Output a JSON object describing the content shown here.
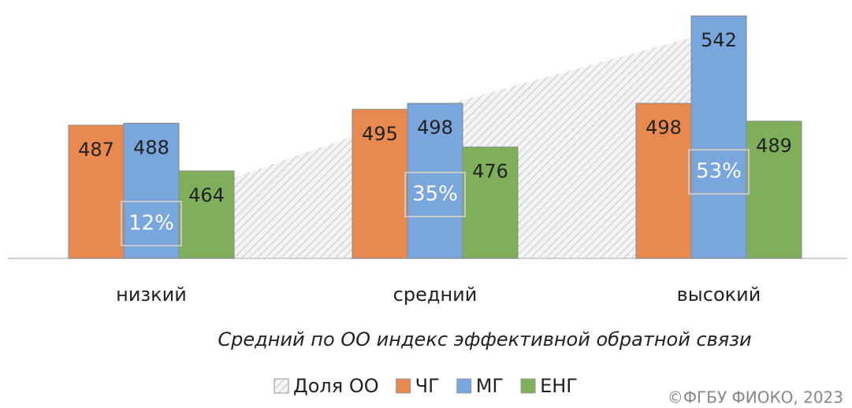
{
  "chart_data": {
    "type": "bar",
    "categories": [
      "низкий",
      "средний",
      "высокий"
    ],
    "x_label": "Средний по ОО индекс эффективной обратной связи",
    "series": [
      {
        "name": "Доля ОО",
        "type": "area",
        "axis": "y2",
        "color": "#bfbfbf",
        "values": [
          12,
          35,
          53
        ],
        "value_labels": [
          "12%",
          "35%",
          "53%"
        ]
      },
      {
        "name": "ЧГ",
        "color": "#e8894f",
        "values": [
          487,
          495,
          498
        ]
      },
      {
        "name": "МГ",
        "color": "#79a6dc",
        "values": [
          488,
          498,
          542
        ]
      },
      {
        "name": "ЕНГ",
        "color": "#7faf5a",
        "values": [
          464,
          476,
          489
        ]
      }
    ],
    "ylim": [
      420,
      550
    ],
    "y2lim": [
      0,
      60
    ],
    "legend": "bottom",
    "source": "©ФГБУ ФИОКО, 2023"
  }
}
